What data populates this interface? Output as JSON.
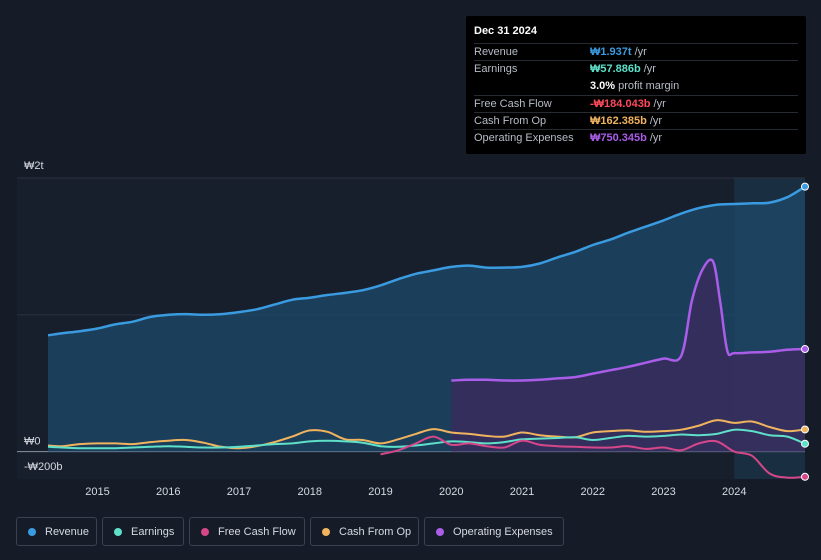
{
  "tooltip": {
    "date": "Dec 31 2024",
    "rows": [
      {
        "label": "Revenue",
        "value": "₩1.937t",
        "unit": "/yr",
        "color": "#3a9be0"
      },
      {
        "label": "Earnings",
        "value": "₩57.886b",
        "unit": "/yr",
        "color": "#5ee0c9"
      },
      {
        "label": "",
        "value": "3.0%",
        "unit": "profit margin",
        "color": "#ffffff"
      },
      {
        "label": "Free Cash Flow",
        "value": "-₩184.043b",
        "unit": "/yr",
        "color": "#ff4a5a"
      },
      {
        "label": "Cash From Op",
        "value": "₩162.385b",
        "unit": "/yr",
        "color": "#f0b45f"
      },
      {
        "label": "Operating Expenses",
        "value": "₩750.345b",
        "unit": "/yr",
        "color": "#a95de8"
      }
    ]
  },
  "legend": [
    {
      "label": "Revenue",
      "color": "#3a9be0"
    },
    {
      "label": "Earnings",
      "color": "#5ee0c9"
    },
    {
      "label": "Free Cash Flow",
      "color": "#d6478a"
    },
    {
      "label": "Cash From Op",
      "color": "#f0b45f"
    },
    {
      "label": "Operating Expenses",
      "color": "#a95de8"
    }
  ],
  "chart_data": {
    "type": "area",
    "title": "",
    "xlabel": "",
    "ylabel": "",
    "ylim": [
      -200,
      2000
    ],
    "y_ticks": [
      {
        "value": 2000,
        "label": "₩2t"
      },
      {
        "value": 0,
        "label": "₩0"
      },
      {
        "value": -200,
        "label": "-₩200b"
      }
    ],
    "x_ticks": [
      "2015",
      "2016",
      "2017",
      "2018",
      "2019",
      "2020",
      "2021",
      "2022",
      "2023",
      "2024"
    ],
    "x_range": [
      2014.3,
      2025.0
    ],
    "highlight_from": 2024.0,
    "series": [
      {
        "name": "Revenue",
        "color": "#3a9be0",
        "fill": true,
        "x": [
          2014.3,
          2014.5,
          2014.75,
          2015.0,
          2015.25,
          2015.5,
          2015.75,
          2016.0,
          2016.25,
          2016.5,
          2016.75,
          2017.0,
          2017.25,
          2017.5,
          2017.75,
          2018.0,
          2018.25,
          2018.5,
          2018.75,
          2019.0,
          2019.25,
          2019.5,
          2019.75,
          2020.0,
          2020.25,
          2020.5,
          2020.75,
          2021.0,
          2021.25,
          2021.5,
          2021.75,
          2022.0,
          2022.25,
          2022.5,
          2022.75,
          2023.0,
          2023.25,
          2023.5,
          2023.75,
          2024.0,
          2024.25,
          2024.5,
          2024.75,
          2025.0
        ],
        "values": [
          850,
          865,
          880,
          900,
          930,
          950,
          985,
          1000,
          1005,
          1000,
          1005,
          1020,
          1040,
          1075,
          1110,
          1125,
          1145,
          1160,
          1180,
          1215,
          1260,
          1300,
          1325,
          1350,
          1360,
          1345,
          1345,
          1350,
          1375,
          1420,
          1460,
          1510,
          1550,
          1600,
          1645,
          1690,
          1740,
          1780,
          1805,
          1810,
          1815,
          1820,
          1860,
          1937
        ]
      },
      {
        "name": "Operating Expenses",
        "color": "#a95de8",
        "fill": true,
        "x": [
          2020.0,
          2020.25,
          2020.5,
          2020.75,
          2021.0,
          2021.25,
          2021.5,
          2021.75,
          2022.0,
          2022.25,
          2022.5,
          2022.75,
          2023.0,
          2023.25,
          2023.4,
          2023.55,
          2023.7,
          2023.8,
          2023.9,
          2024.0,
          2024.25,
          2024.5,
          2024.75,
          2025.0
        ],
        "values": [
          520,
          525,
          525,
          520,
          520,
          525,
          535,
          545,
          570,
          595,
          620,
          650,
          680,
          700,
          1100,
          1330,
          1390,
          1100,
          740,
          720,
          725,
          730,
          745,
          750
        ]
      },
      {
        "name": "Cash From Op",
        "color": "#f0b45f",
        "fill": false,
        "x": [
          2014.3,
          2014.5,
          2014.75,
          2015.0,
          2015.25,
          2015.5,
          2015.75,
          2016.0,
          2016.25,
          2016.5,
          2016.75,
          2017.0,
          2017.25,
          2017.5,
          2017.75,
          2018.0,
          2018.25,
          2018.5,
          2018.75,
          2019.0,
          2019.25,
          2019.5,
          2019.75,
          2020.0,
          2020.25,
          2020.5,
          2020.75,
          2021.0,
          2021.25,
          2021.5,
          2021.75,
          2022.0,
          2022.25,
          2022.5,
          2022.75,
          2023.0,
          2023.25,
          2023.5,
          2023.75,
          2024.0,
          2024.25,
          2024.5,
          2024.75,
          2025.0
        ],
        "values": [
          45,
          40,
          55,
          60,
          60,
          55,
          70,
          80,
          85,
          65,
          35,
          25,
          40,
          70,
          110,
          155,
          145,
          90,
          85,
          60,
          90,
          130,
          165,
          140,
          130,
          115,
          110,
          140,
          120,
          110,
          105,
          140,
          150,
          155,
          145,
          150,
          160,
          190,
          230,
          210,
          220,
          180,
          150,
          162
        ]
      },
      {
        "name": "Earnings",
        "color": "#5ee0c9",
        "fill": false,
        "x": [
          2014.3,
          2014.5,
          2014.75,
          2015.0,
          2015.25,
          2015.5,
          2015.75,
          2016.0,
          2016.25,
          2016.5,
          2016.75,
          2017.0,
          2017.25,
          2017.5,
          2017.75,
          2018.0,
          2018.25,
          2018.5,
          2018.75,
          2019.0,
          2019.25,
          2019.5,
          2019.75,
          2020.0,
          2020.25,
          2020.5,
          2020.75,
          2021.0,
          2021.25,
          2021.5,
          2021.75,
          2022.0,
          2022.25,
          2022.5,
          2022.75,
          2023.0,
          2023.25,
          2023.5,
          2023.75,
          2024.0,
          2024.25,
          2024.5,
          2024.75,
          2025.0
        ],
        "values": [
          35,
          30,
          25,
          25,
          25,
          30,
          35,
          40,
          35,
          30,
          30,
          35,
          45,
          55,
          60,
          75,
          80,
          75,
          65,
          40,
          35,
          45,
          60,
          75,
          70,
          60,
          70,
          90,
          95,
          100,
          105,
          85,
          100,
          115,
          110,
          115,
          125,
          120,
          130,
          160,
          150,
          120,
          110,
          58
        ]
      },
      {
        "name": "Free Cash Flow",
        "color": "#d6478a",
        "fill": false,
        "x": [
          2019.0,
          2019.25,
          2019.5,
          2019.75,
          2020.0,
          2020.25,
          2020.5,
          2020.75,
          2021.0,
          2021.25,
          2021.5,
          2021.75,
          2022.0,
          2022.25,
          2022.5,
          2022.75,
          2023.0,
          2023.25,
          2023.5,
          2023.75,
          2024.0,
          2024.25,
          2024.5,
          2024.75,
          2025.0
        ],
        "values": [
          -20,
          10,
          60,
          110,
          50,
          60,
          40,
          30,
          80,
          50,
          40,
          35,
          30,
          30,
          40,
          20,
          30,
          10,
          60,
          75,
          0,
          -30,
          -160,
          -190,
          -184
        ]
      }
    ]
  }
}
